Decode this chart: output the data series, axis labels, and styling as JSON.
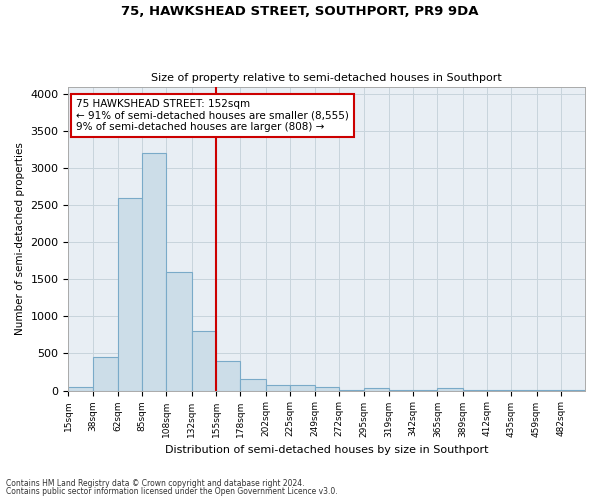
{
  "title1": "75, HAWKSHEAD STREET, SOUTHPORT, PR9 9DA",
  "title2": "Size of property relative to semi-detached houses in Southport",
  "xlabel": "Distribution of semi-detached houses by size in Southport",
  "ylabel": "Number of semi-detached properties",
  "footnote1": "Contains HM Land Registry data © Crown copyright and database right 2024.",
  "footnote2": "Contains public sector information licensed under the Open Government Licence v3.0.",
  "annotation_line1": "75 HAWKSHEAD STREET: 152sqm",
  "annotation_line2": "← 91% of semi-detached houses are smaller (8,555)",
  "annotation_line3": "9% of semi-detached houses are larger (808) →",
  "bar_color": "#ccdde8",
  "bar_edge_color": "#7aaac8",
  "vline_value": 155,
  "vline_color": "#cc0000",
  "categories": [
    "15sqm",
    "38sqm",
    "62sqm",
    "85sqm",
    "108sqm",
    "132sqm",
    "155sqm",
    "178sqm",
    "202sqm",
    "225sqm",
    "249sqm",
    "272sqm",
    "295sqm",
    "319sqm",
    "342sqm",
    "365sqm",
    "389sqm",
    "412sqm",
    "435sqm",
    "459sqm",
    "482sqm"
  ],
  "bin_edges": [
    15,
    38,
    62,
    85,
    108,
    132,
    155,
    178,
    202,
    225,
    249,
    272,
    295,
    319,
    342,
    365,
    389,
    412,
    435,
    459,
    482,
    505
  ],
  "values": [
    50,
    450,
    2600,
    3200,
    1600,
    800,
    400,
    150,
    80,
    75,
    50,
    5,
    40,
    5,
    5,
    30,
    5,
    5,
    5,
    5,
    5
  ],
  "ylim": [
    0,
    4100
  ],
  "yticks": [
    0,
    500,
    1000,
    1500,
    2000,
    2500,
    3000,
    3500,
    4000
  ],
  "ax_background": "#e8eef4",
  "fig_background": "#ffffff",
  "grid_color": "#c8d4dc"
}
